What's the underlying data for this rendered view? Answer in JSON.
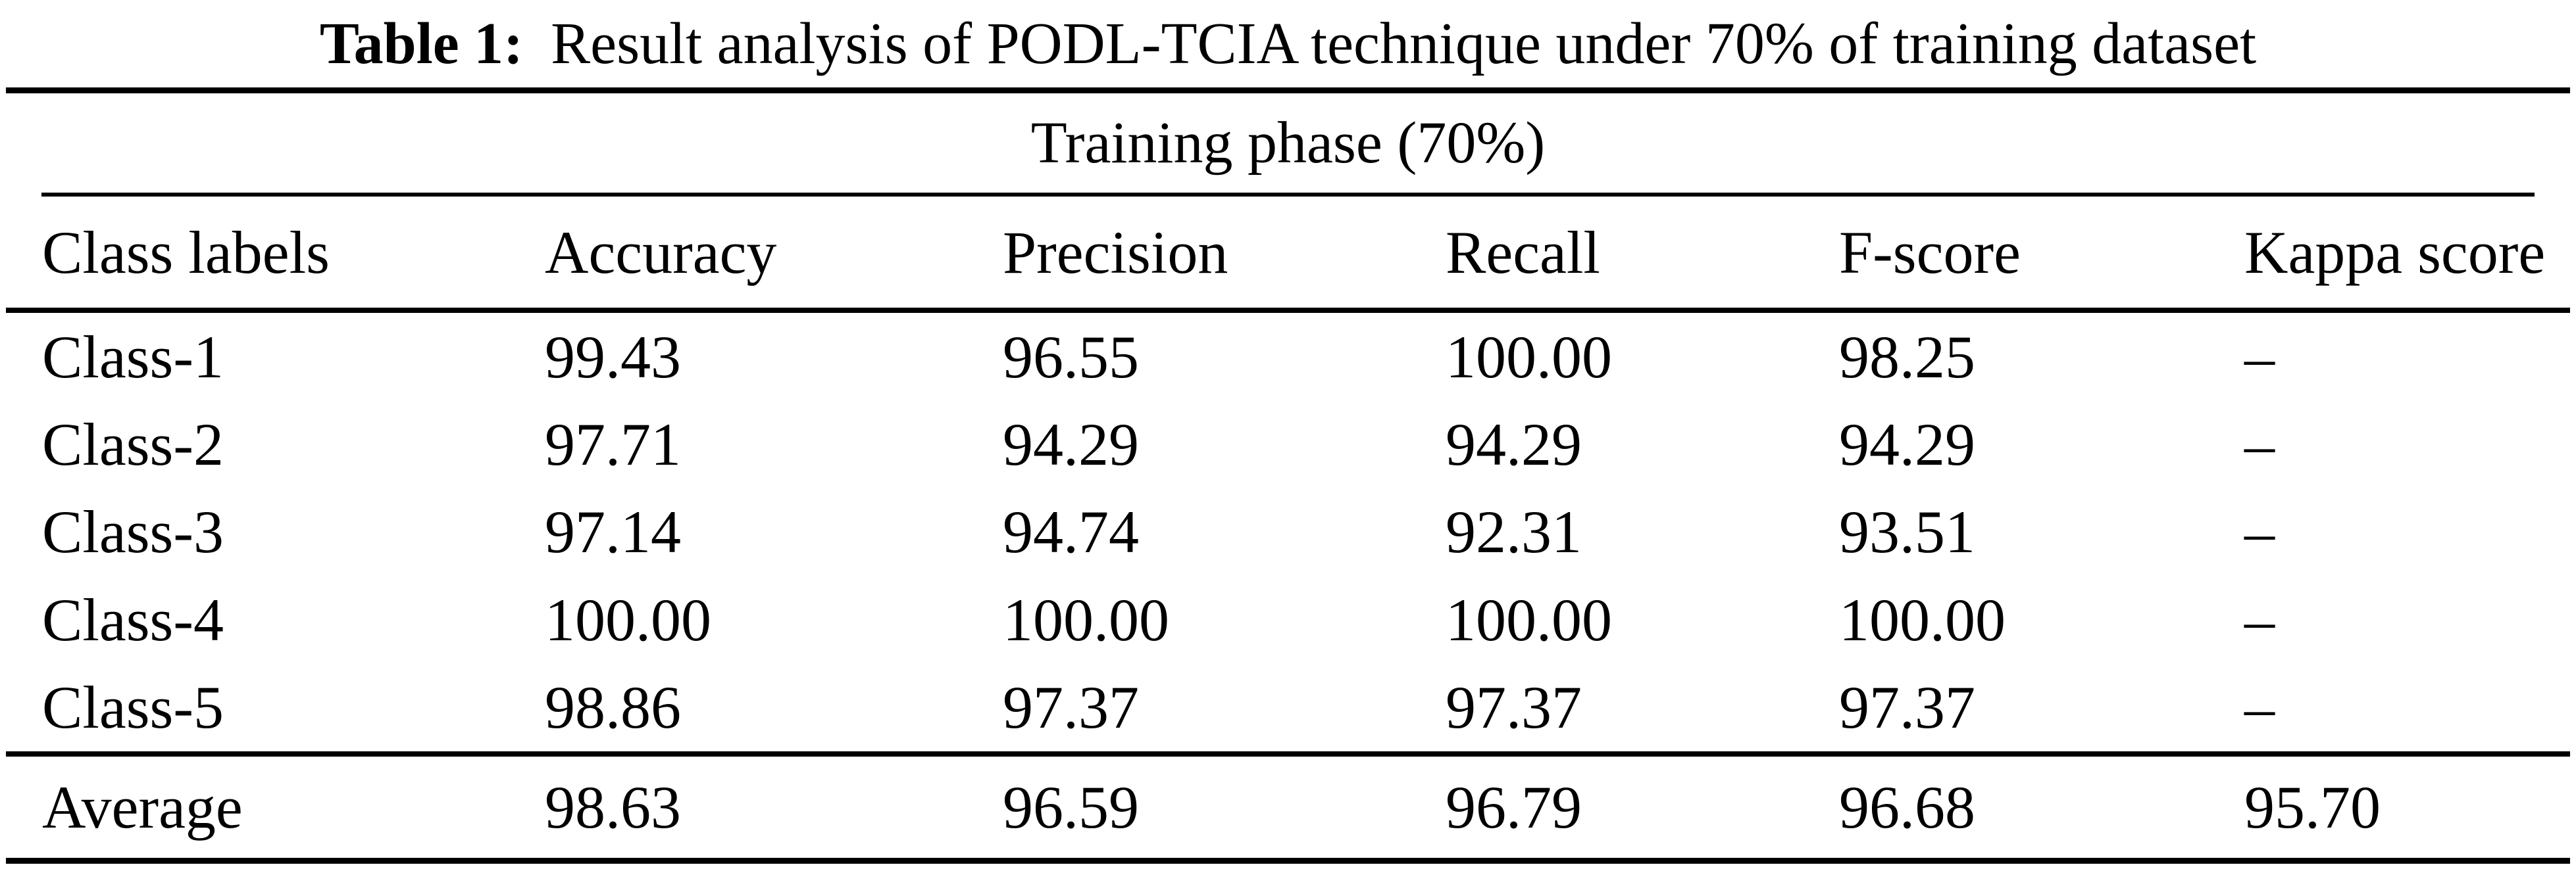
{
  "caption": {
    "label": "Table 1:",
    "text": "Result analysis of PODL-TCIA technique under 70% of training dataset"
  },
  "table": {
    "group_header": "Training phase (70%)",
    "columns": [
      "Class labels",
      "Accuracy",
      "Precision",
      "Recall",
      "F-score",
      "Kappa score"
    ],
    "rows": [
      {
        "label": "Class-1",
        "values": [
          "99.43",
          "96.55",
          "100.00",
          "98.25",
          "–"
        ]
      },
      {
        "label": "Class-2",
        "values": [
          "97.71",
          "94.29",
          "94.29",
          "94.29",
          "–"
        ]
      },
      {
        "label": "Class-3",
        "values": [
          "97.14",
          "94.74",
          "92.31",
          "93.51",
          "–"
        ]
      },
      {
        "label": "Class-4",
        "values": [
          "100.00",
          "100.00",
          "100.00",
          "100.00",
          "–"
        ]
      },
      {
        "label": "Class-5",
        "values": [
          "98.86",
          "97.37",
          "97.37",
          "97.37",
          "–"
        ]
      }
    ],
    "summary_row": {
      "label": "Average",
      "values": [
        "98.63",
        "96.59",
        "96.79",
        "96.68",
        "95.70"
      ]
    }
  },
  "colors": {
    "text": "#000000",
    "background": "#ffffff",
    "rule": "#000000"
  }
}
